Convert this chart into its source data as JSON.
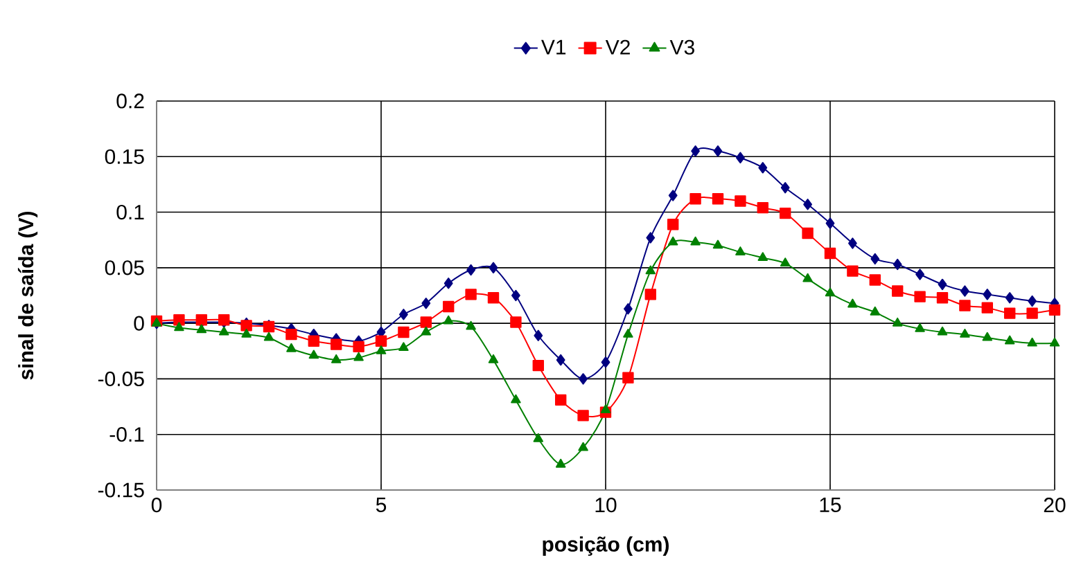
{
  "chart_data": {
    "type": "line",
    "xlabel": "posição (cm)",
    "ylabel": "sinal de saída (V)",
    "x": [
      0,
      0.5,
      1,
      1.5,
      2,
      2.5,
      3,
      3.5,
      4,
      4.5,
      5,
      5.5,
      6,
      6.5,
      7,
      7.5,
      8,
      8.5,
      9,
      9.5,
      10,
      10.5,
      11,
      11.5,
      12,
      12.5,
      13,
      13.5,
      14,
      14.5,
      15,
      15.5,
      16,
      16.5,
      17,
      17.5,
      18,
      18.5,
      19,
      19.5,
      20
    ],
    "series": [
      {
        "name": "V1",
        "color": "#000080",
        "marker": "diamond",
        "values": [
          0,
          0.001,
          0.001,
          0.001,
          0,
          -0.002,
          -0.005,
          -0.01,
          -0.014,
          -0.016,
          -0.008,
          0.008,
          0.018,
          0.036,
          0.048,
          0.05,
          0.025,
          -0.011,
          -0.033,
          -0.05,
          -0.035,
          0.013,
          0.077,
          0.115,
          0.155,
          0.155,
          0.149,
          0.14,
          0.122,
          0.107,
          0.09,
          0.072,
          0.058,
          0.053,
          0.044,
          0.035,
          0.029,
          0.026,
          0.023,
          0.02,
          0.018
        ]
      },
      {
        "name": "V2",
        "color": "#ff0000",
        "marker": "square",
        "values": [
          0.002,
          0.003,
          0.003,
          0.003,
          -0.002,
          -0.003,
          -0.01,
          -0.016,
          -0.019,
          -0.021,
          -0.016,
          -0.008,
          0.001,
          0.015,
          0.026,
          0.023,
          0.001,
          -0.038,
          -0.069,
          -0.083,
          -0.08,
          -0.049,
          0.026,
          0.089,
          0.112,
          0.112,
          0.11,
          0.104,
          0.099,
          0.081,
          0.063,
          0.047,
          0.039,
          0.029,
          0.024,
          0.023,
          0.016,
          0.014,
          0.009,
          0.009,
          0.012
        ]
      },
      {
        "name": "V3",
        "color": "#008000",
        "marker": "triangle",
        "values": [
          0,
          -0.004,
          -0.006,
          -0.008,
          -0.01,
          -0.013,
          -0.023,
          -0.029,
          -0.033,
          -0.031,
          -0.025,
          -0.022,
          -0.008,
          0.002,
          -0.003,
          -0.033,
          -0.069,
          -0.104,
          -0.127,
          -0.112,
          -0.078,
          -0.01,
          0.047,
          0.073,
          0.073,
          0.07,
          0.064,
          0.059,
          0.054,
          0.04,
          0.027,
          0.017,
          0.01,
          0,
          -0.005,
          -0.008,
          -0.01,
          -0.013,
          -0.016,
          -0.018,
          -0.018
        ]
      }
    ],
    "xlim": [
      0,
      20
    ],
    "xticks": [
      0,
      5,
      10,
      15,
      20
    ],
    "ylim": [
      -0.15,
      0.2
    ],
    "yticks": [
      -0.15,
      -0.1,
      -0.05,
      0,
      0.05,
      0.1,
      0.15,
      0.2
    ],
    "grid": true,
    "legend": "top",
    "line_style": "solid"
  }
}
